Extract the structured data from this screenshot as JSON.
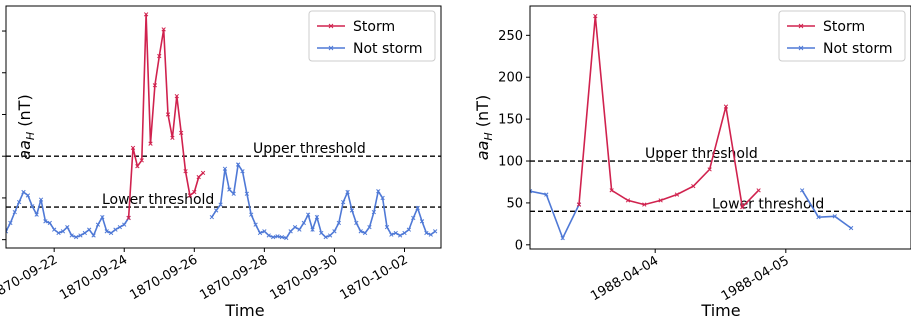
{
  "colors": {
    "storm": "#d0224e",
    "not_storm": "#4f79d6",
    "threshold": "#000000"
  },
  "chart_data": [
    {
      "type": "line",
      "xlabel": "Time",
      "ylabel": "aa_H (nT)",
      "x_is_date": true,
      "xlim": [
        "1870-09-20T15:00",
        "1870-10-03T01:00"
      ],
      "ylim": [
        -10,
        280
      ],
      "yticks": [
        0,
        50,
        100,
        150,
        200,
        250
      ],
      "xticks": [
        "1870-09-22",
        "1870-09-24",
        "1870-09-26",
        "1870-09-28",
        "1870-09-30",
        "1870-10-02"
      ],
      "legend": {
        "position": "top-right",
        "entries": [
          "Storm",
          "Not storm"
        ]
      },
      "thresholds": [
        {
          "label": "Upper threshold",
          "value": 100
        },
        {
          "label": "Lower threshold",
          "value": 39
        }
      ],
      "series": [
        {
          "name": "Not storm",
          "segments": [
            [
              [
                "1870-09-20T15:00",
                10
              ],
              [
                "1870-09-20T18:00",
                20
              ],
              [
                "1870-09-20T21:00",
                33
              ],
              [
                "1870-09-21T00:00",
                45
              ],
              [
                "1870-09-21T03:00",
                57
              ],
              [
                "1870-09-21T06:00",
                53
              ],
              [
                "1870-09-21T09:00",
                40
              ],
              [
                "1870-09-21T12:00",
                30
              ],
              [
                "1870-09-21T15:00",
                48
              ],
              [
                "1870-09-21T18:00",
                22
              ],
              [
                "1870-09-21T21:00",
                20
              ],
              [
                "1870-09-22T00:00",
                12
              ],
              [
                "1870-09-22T03:00",
                8
              ],
              [
                "1870-09-22T06:00",
                10
              ],
              [
                "1870-09-22T09:00",
                15
              ],
              [
                "1870-09-22T12:00",
                5
              ],
              [
                "1870-09-22T15:00",
                3
              ],
              [
                "1870-09-22T18:00",
                5
              ],
              [
                "1870-09-22T21:00",
                8
              ],
              [
                "1870-09-23T00:00",
                12
              ],
              [
                "1870-09-23T03:00",
                5
              ],
              [
                "1870-09-23T06:00",
                18
              ],
              [
                "1870-09-23T09:00",
                27
              ],
              [
                "1870-09-23T12:00",
                10
              ],
              [
                "1870-09-23T15:00",
                8
              ],
              [
                "1870-09-23T18:00",
                12
              ],
              [
                "1870-09-23T21:00",
                15
              ],
              [
                "1870-09-24T00:00",
                18
              ],
              [
                "1870-09-24T03:00",
                26
              ]
            ],
            [
              [
                "1870-09-26T12:00",
                27
              ],
              [
                "1870-09-26T15:00",
                35
              ],
              [
                "1870-09-26T18:00",
                42
              ],
              [
                "1870-09-26T21:00",
                85
              ],
              [
                "1870-09-27T00:00",
                60
              ],
              [
                "1870-09-27T03:00",
                55
              ],
              [
                "1870-09-27T06:00",
                90
              ],
              [
                "1870-09-27T09:00",
                82
              ],
              [
                "1870-09-27T12:00",
                55
              ],
              [
                "1870-09-27T15:00",
                30
              ],
              [
                "1870-09-27T18:00",
                18
              ],
              [
                "1870-09-27T21:00",
                8
              ],
              [
                "1870-09-28T00:00",
                10
              ],
              [
                "1870-09-28T03:00",
                5
              ],
              [
                "1870-09-28T06:00",
                3
              ],
              [
                "1870-09-28T09:00",
                4
              ],
              [
                "1870-09-28T12:00",
                3
              ],
              [
                "1870-09-28T15:00",
                2
              ],
              [
                "1870-09-28T18:00",
                10
              ],
              [
                "1870-09-28T21:00",
                15
              ],
              [
                "1870-09-29T00:00",
                12
              ],
              [
                "1870-09-29T03:00",
                20
              ],
              [
                "1870-09-29T06:00",
                30
              ],
              [
                "1870-09-29T09:00",
                12
              ],
              [
                "1870-09-29T12:00",
                27
              ],
              [
                "1870-09-29T15:00",
                8
              ],
              [
                "1870-09-29T18:00",
                3
              ],
              [
                "1870-09-29T21:00",
                5
              ],
              [
                "1870-09-30T00:00",
                10
              ],
              [
                "1870-09-30T03:00",
                20
              ],
              [
                "1870-09-30T06:00",
                45
              ],
              [
                "1870-09-30T09:00",
                57
              ],
              [
                "1870-09-30T12:00",
                35
              ],
              [
                "1870-09-30T15:00",
                20
              ],
              [
                "1870-09-30T18:00",
                10
              ],
              [
                "1870-09-30T21:00",
                8
              ],
              [
                "1870-10-01T00:00",
                15
              ],
              [
                "1870-10-01T03:00",
                33
              ],
              [
                "1870-10-01T06:00",
                58
              ],
              [
                "1870-10-01T09:00",
                50
              ],
              [
                "1870-10-01T12:00",
                15
              ],
              [
                "1870-10-01T15:00",
                6
              ],
              [
                "1870-10-01T18:00",
                8
              ],
              [
                "1870-10-01T21:00",
                5
              ],
              [
                "1870-10-02T00:00",
                8
              ],
              [
                "1870-10-02T03:00",
                12
              ],
              [
                "1870-10-02T06:00",
                26
              ],
              [
                "1870-10-02T09:00",
                38
              ],
              [
                "1870-10-02T12:00",
                22
              ],
              [
                "1870-10-02T15:00",
                8
              ],
              [
                "1870-10-02T18:00",
                6
              ],
              [
                "1870-10-02T21:00",
                10
              ]
            ]
          ]
        },
        {
          "name": "Storm",
          "segments": [
            [
              [
                "1870-09-24T03:00",
                26
              ],
              [
                "1870-09-24T06:00",
                110
              ],
              [
                "1870-09-24T09:00",
                88
              ],
              [
                "1870-09-24T12:00",
                95
              ],
              [
                "1870-09-24T15:00",
                270
              ],
              [
                "1870-09-24T18:00",
                115
              ],
              [
                "1870-09-24T21:00",
                185
              ],
              [
                "1870-09-25T00:00",
                220
              ],
              [
                "1870-09-25T03:00",
                252
              ],
              [
                "1870-09-25T06:00",
                150
              ],
              [
                "1870-09-25T09:00",
                122
              ],
              [
                "1870-09-25T12:00",
                172
              ],
              [
                "1870-09-25T15:00",
                128
              ],
              [
                "1870-09-25T18:00",
                82
              ],
              [
                "1870-09-25T21:00",
                53
              ],
              [
                "1870-09-26T00:00",
                57
              ],
              [
                "1870-09-26T03:00",
                75
              ],
              [
                "1870-09-26T06:00",
                80
              ]
            ]
          ]
        }
      ]
    },
    {
      "type": "line",
      "xlabel": "Time",
      "ylabel": "aa_H (nT)",
      "x_is_date": true,
      "xlim": [
        "1988-04-03T01:00",
        "1988-04-05T23:00"
      ],
      "ylim": [
        -5,
        285
      ],
      "yticks": [
        0,
        50,
        100,
        150,
        200,
        250
      ],
      "xticks": [
        "1988-04-04",
        "1988-04-05"
      ],
      "legend": {
        "position": "top-right",
        "entries": [
          "Storm",
          "Not storm"
        ]
      },
      "thresholds": [
        {
          "label": "Upper threshold",
          "value": 100
        },
        {
          "label": "Lower threshold",
          "value": 40
        }
      ],
      "series": [
        {
          "name": "Not storm",
          "segments": [
            [
              [
                "1988-04-03T01:00",
                64
              ],
              [
                "1988-04-03T04:00",
                60
              ],
              [
                "1988-04-03T07:00",
                8
              ],
              [
                "1988-04-03T10:00",
                48
              ]
            ],
            [
              [
                "1988-04-05T03:00",
                65
              ],
              [
                "1988-04-05T06:00",
                33
              ],
              [
                "1988-04-05T09:00",
                34
              ],
              [
                "1988-04-05T12:00",
                20
              ]
            ]
          ]
        },
        {
          "name": "Storm",
          "segments": [
            [
              [
                "1988-04-03T10:00",
                48
              ],
              [
                "1988-04-03T13:00",
                273
              ],
              [
                "1988-04-03T16:00",
                65
              ],
              [
                "1988-04-03T19:00",
                53
              ],
              [
                "1988-04-03T22:00",
                48
              ],
              [
                "1988-04-04T01:00",
                53
              ],
              [
                "1988-04-04T04:00",
                60
              ],
              [
                "1988-04-04T07:00",
                70
              ],
              [
                "1988-04-04T10:00",
                90
              ],
              [
                "1988-04-04T13:00",
                165
              ],
              [
                "1988-04-04T16:00",
                45
              ],
              [
                "1988-04-04T19:00",
                65
              ]
            ]
          ]
        }
      ]
    }
  ]
}
